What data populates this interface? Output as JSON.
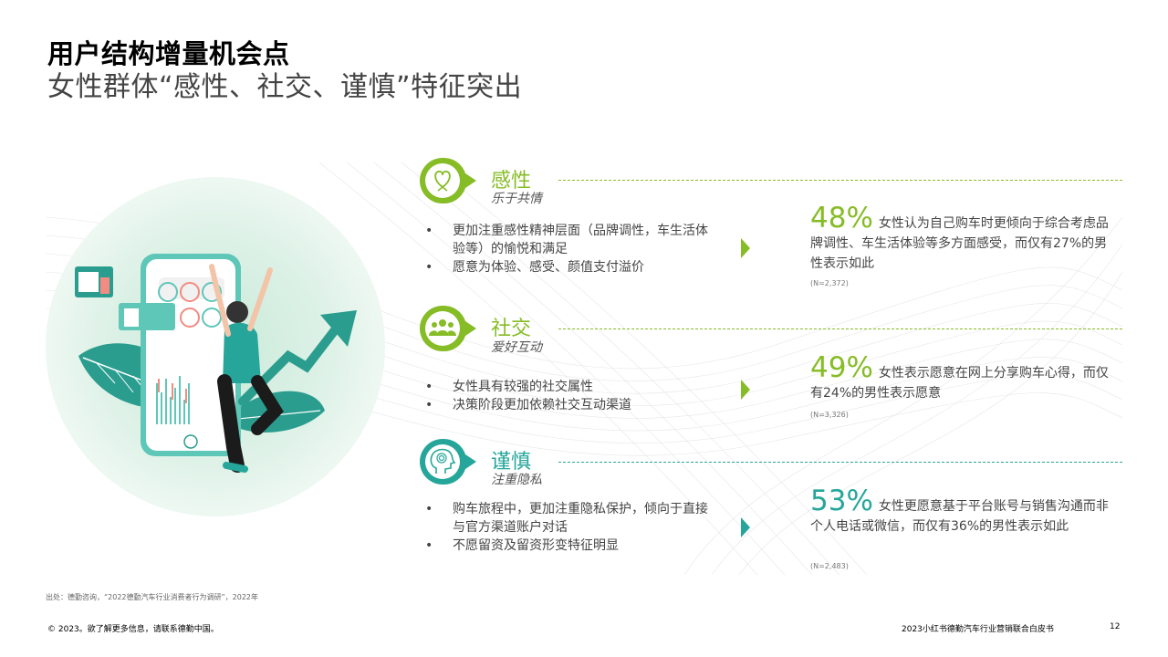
{
  "header": {
    "title": "用户结构增量机会点",
    "subtitle": "女性群体“感性、社交、谨慎”特征突出"
  },
  "sections": [
    {
      "title": "感性",
      "subtitle": "乐于共情",
      "icon": "heart-hand-icon",
      "bullets": [
        "更加注重感性精神层面（品牌调性，车生活体验等）的愉悦和满足",
        "愿意为体验、感受、颜值支付溢价"
      ],
      "stat_pct": "48%",
      "stat_text": "女性认为自己购车时更倾向于综合考虑品牌调性、车生活体验等多方面感受，而仅有27%的男性表示如此",
      "n": "(N=2,372)",
      "color": "#86bc25"
    },
    {
      "title": "社交",
      "subtitle": "爱好互动",
      "icon": "people-group-icon",
      "bullets": [
        "女性具有较强的社交属性",
        "决策阶段更加依赖社交互动渠道"
      ],
      "stat_pct": "49%",
      "stat_text": "女性表示愿意在网上分享购车心得，而仅有24%的男性表示愿意",
      "n": "(N=3,326)",
      "color": "#86bc25"
    },
    {
      "title": "谨慎",
      "subtitle": "注重隐私",
      "icon": "head-fingerprint-icon",
      "bullets": [
        "购车旅程中，更加注重隐私保护，倾向于直接与官方渠道账户对话",
        "不愿留资及留资形变特征明显"
      ],
      "stat_pct": "53%",
      "stat_text": "女性更愿意基于平台账号与销售沟通而非个人电话或微信，而仅有36%的男性表示如此",
      "n": "(N=2,483)",
      "color": "#26a69a"
    }
  ],
  "source": "出处：德勤咨询，“2022德勤汽车行业消费者行为调研”，2022年",
  "footer": {
    "copyright": "© 2023。欲了解更多信息，请联系德勤中国。",
    "doc_title": "2023小红书德勤汽车行业营销联合白皮书",
    "page": "12"
  }
}
